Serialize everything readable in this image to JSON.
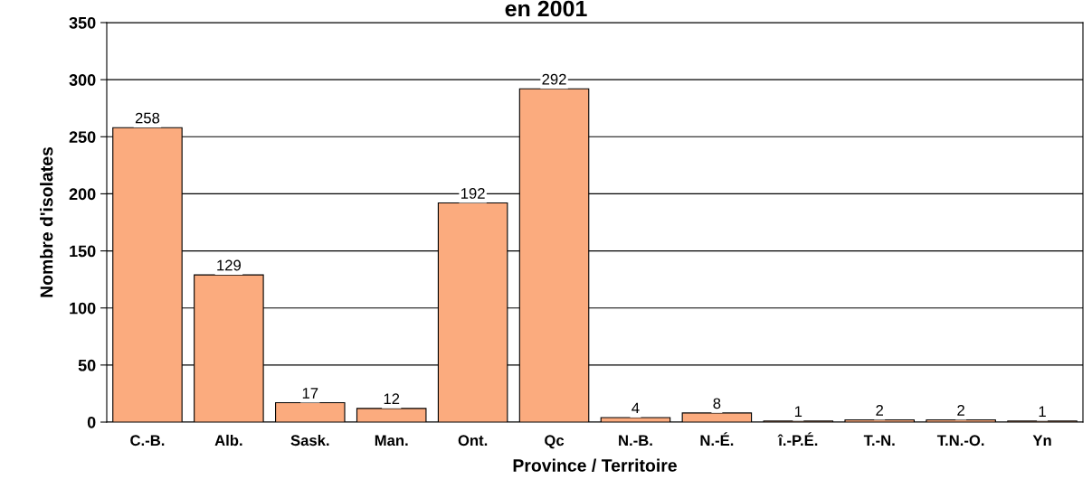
{
  "chart_data": {
    "type": "bar",
    "title": "en 2001",
    "xlabel": "Province / Territoire",
    "ylabel": "Nombre d'isolates",
    "categories": [
      "C.-B.",
      "Alb.",
      "Sask.",
      "Man.",
      "Ont.",
      "Qc",
      "N.-B.",
      "N.-É.",
      "î.-P.É.",
      "T.-N.",
      "T.N.-O.",
      "Yn"
    ],
    "values": [
      258,
      129,
      17,
      12,
      192,
      292,
      4,
      8,
      1,
      2,
      2,
      1
    ],
    "color": "#fbab7e",
    "ylim": [
      0,
      350
    ],
    "yticks": [
      0,
      50,
      100,
      150,
      200,
      250,
      300,
      350
    ],
    "grid": "y",
    "data_labels": true
  }
}
